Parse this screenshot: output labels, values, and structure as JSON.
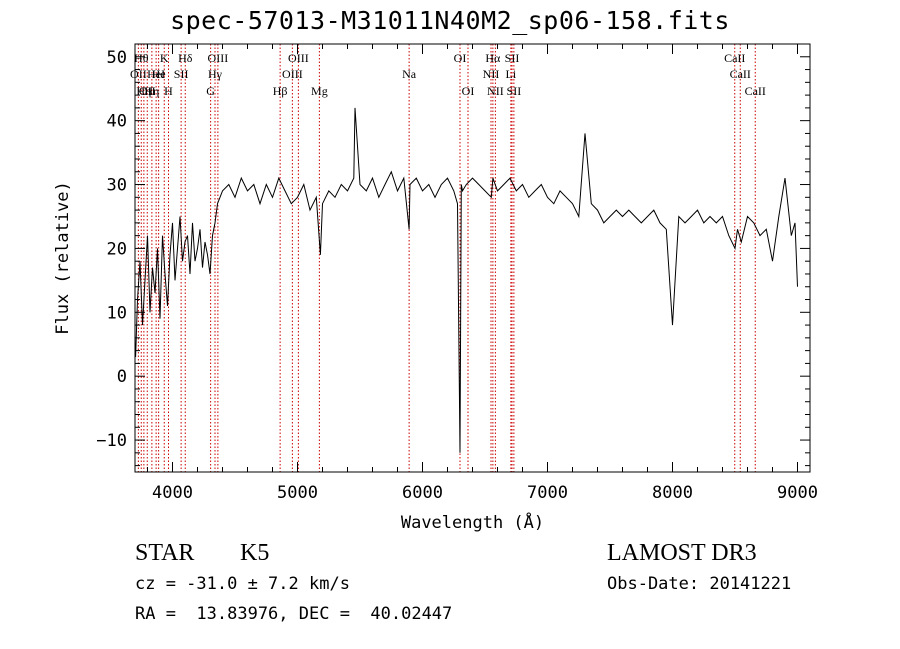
{
  "chart_data": {
    "type": "line",
    "title": "spec-57013-M31011N40M2_sp06-158.fits",
    "xlabel": "Wavelength (Å)",
    "ylabel": "Flux (relative)",
    "xlim": [
      3700,
      9100
    ],
    "ylim": [
      -15,
      52
    ],
    "xticks": [
      4000,
      5000,
      6000,
      7000,
      8000,
      9000
    ],
    "yticks": [
      -10,
      0,
      10,
      20,
      30,
      40,
      50
    ],
    "grid": false,
    "line_color": "#000000",
    "marker_color": "#cc0000",
    "series": [
      {
        "x": [
          3705,
          3720,
          3740,
          3760,
          3780,
          3800,
          3820,
          3840,
          3860,
          3880,
          3900,
          3920,
          3940,
          3960,
          3980,
          4000,
          4020,
          4040,
          4060,
          4080,
          4100,
          4120,
          4140,
          4160,
          4180,
          4200,
          4220,
          4240,
          4260,
          4280,
          4300,
          4320,
          4340,
          4360,
          4380,
          4400,
          4450,
          4500,
          4550,
          4600,
          4650,
          4700,
          4750,
          4800,
          4850,
          4900,
          4950,
          5000,
          5050,
          5100,
          5150,
          5183,
          5200,
          5250,
          5300,
          5350,
          5400,
          5450,
          5460,
          5500,
          5550,
          5600,
          5650,
          5700,
          5750,
          5800,
          5850,
          5893,
          5900,
          5950,
          6000,
          6050,
          6100,
          6150,
          6200,
          6250,
          6280,
          6300,
          6310,
          6320,
          6350,
          6400,
          6450,
          6500,
          6550,
          6563,
          6600,
          6650,
          6700,
          6750,
          6800,
          6850,
          6900,
          6950,
          7000,
          7050,
          7100,
          7150,
          7200,
          7250,
          7300,
          7350,
          7400,
          7450,
          7500,
          7550,
          7600,
          7650,
          7700,
          7750,
          7800,
          7850,
          7900,
          7950,
          8000,
          8050,
          8100,
          8150,
          8200,
          8250,
          8300,
          8350,
          8400,
          8450,
          8500,
          8520,
          8550,
          8600,
          8650,
          8700,
          8750,
          8800,
          8850,
          8900,
          8950,
          8980,
          9000
        ],
        "values": [
          3,
          12,
          18,
          8,
          15,
          22,
          10,
          17,
          13,
          20,
          9,
          22,
          16,
          11,
          19,
          24,
          15,
          20,
          25,
          18,
          21,
          22,
          16,
          24,
          18,
          20,
          23,
          17,
          21,
          19,
          16,
          22,
          24,
          27,
          28,
          29,
          30,
          28,
          31,
          29,
          30,
          27,
          30,
          28,
          31,
          29,
          27,
          28,
          30,
          26,
          28,
          19,
          27,
          29,
          28,
          30,
          29,
          31,
          42,
          30,
          29,
          31,
          28,
          30,
          32,
          29,
          31,
          23,
          30,
          31,
          29,
          30,
          28,
          30,
          31,
          29,
          27,
          -12,
          30,
          29,
          30,
          31,
          30,
          29,
          28,
          31,
          29,
          30,
          31,
          29,
          30,
          28,
          29,
          30,
          28,
          27,
          29,
          28,
          27,
          25,
          38,
          27,
          26,
          24,
          25,
          26,
          25,
          26,
          25,
          24,
          25,
          26,
          24,
          23,
          8,
          25,
          24,
          25,
          26,
          24,
          25,
          24,
          25,
          22,
          20,
          23,
          21,
          25,
          24,
          22,
          23,
          18,
          25,
          31,
          22,
          24,
          14
        ]
      }
    ],
    "line_markers": [
      {
        "x": 3727,
        "label": "OII",
        "row": 2
      },
      {
        "x": 3750,
        "label": "Hθ",
        "row": 1
      },
      {
        "x": 3771,
        "label": "Hη",
        "row": 3
      },
      {
        "x": 3798,
        "label": "OII",
        "row": 3
      },
      {
        "x": 3835,
        "label": "Hη",
        "row": 3
      },
      {
        "x": 3869,
        "label": "HeI",
        "row": 2
      },
      {
        "x": 3889,
        "label": "He",
        "row": 2
      },
      {
        "x": 3934,
        "label": "K",
        "row": 1
      },
      {
        "x": 3968,
        "label": "H",
        "row": 3
      },
      {
        "x": 4069,
        "label": "SII",
        "row": 2
      },
      {
        "x": 4102,
        "label": "Hδ",
        "row": 1
      },
      {
        "x": 4305,
        "label": "G",
        "row": 3
      },
      {
        "x": 4340,
        "label": "Hγ",
        "row": 2
      },
      {
        "x": 4363,
        "label": "OIII",
        "row": 1
      },
      {
        "x": 4861,
        "label": "Hβ",
        "row": 3
      },
      {
        "x": 4959,
        "label": "OIII",
        "row": 2
      },
      {
        "x": 5007,
        "label": "OIII",
        "row": 1
      },
      {
        "x": 5175,
        "label": "Mg",
        "row": 3
      },
      {
        "x": 5893,
        "label": "Na",
        "row": 2
      },
      {
        "x": 6300,
        "label": "OI",
        "row": 1
      },
      {
        "x": 6364,
        "label": "OI",
        "row": 3
      },
      {
        "x": 6548,
        "label": "NII",
        "row": 2
      },
      {
        "x": 6563,
        "label": "Hα",
        "row": 1
      },
      {
        "x": 6583,
        "label": "NII",
        "row": 3
      },
      {
        "x": 6707,
        "label": "Li",
        "row": 2
      },
      {
        "x": 6716,
        "label": "SII",
        "row": 1
      },
      {
        "x": 6731,
        "label": "SII",
        "row": 3
      },
      {
        "x": 8498,
        "label": "CaII",
        "row": 1
      },
      {
        "x": 8542,
        "label": "CaII",
        "row": 2
      },
      {
        "x": 8662,
        "label": "CaII",
        "row": 3
      }
    ]
  },
  "info": {
    "object_class": "STAR",
    "subclass": "K5",
    "survey": "LAMOST DR3",
    "redshift": "cz = -31.0 ± 7.2 km/s",
    "obs_date": "Obs-Date: 20141221",
    "coords": "RA =  13.83976, DEC =  40.02447"
  }
}
